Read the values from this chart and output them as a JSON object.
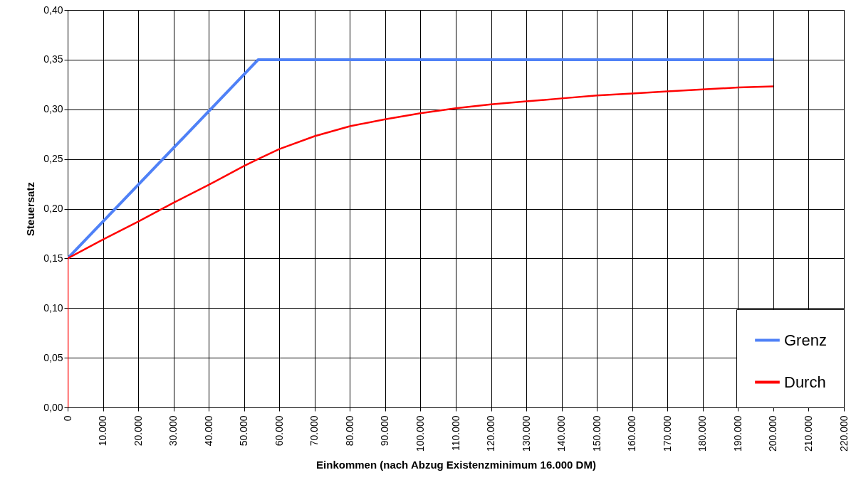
{
  "chart_data": {
    "type": "line",
    "xlabel": "Einkommen (nach Abzug Existenzminimum 16.000 DM)",
    "ylabel": "Steuersatz",
    "series": [
      {
        "name": "Grenz",
        "color": "#4f81f7",
        "x": [
          0,
          54000,
          200000
        ],
        "values": [
          0.15,
          0.35,
          0.35
        ]
      },
      {
        "name": "Durch",
        "color": "#ff0000",
        "x": [
          0,
          0,
          10000,
          20000,
          30000,
          40000,
          50000,
          54000,
          60000,
          70000,
          80000,
          90000,
          100000,
          110000,
          120000,
          130000,
          140000,
          150000,
          160000,
          170000,
          180000,
          190000,
          200000
        ],
        "values": [
          0,
          0.15,
          0.169,
          0.187,
          0.206,
          0.224,
          0.243,
          0.25,
          0.26,
          0.273,
          0.283,
          0.29,
          0.296,
          0.301,
          0.305,
          0.308,
          0.311,
          0.314,
          0.316,
          0.318,
          0.32,
          0.322,
          0.323
        ]
      }
    ],
    "xlim": [
      0,
      220000
    ],
    "xticks": [
      {
        "value": 0,
        "label": "0"
      },
      {
        "value": 10000,
        "label": "10.000"
      },
      {
        "value": 20000,
        "label": "20.000"
      },
      {
        "value": 30000,
        "label": "30.000"
      },
      {
        "value": 40000,
        "label": "40.000"
      },
      {
        "value": 50000,
        "label": "50.000"
      },
      {
        "value": 60000,
        "label": "60.000"
      },
      {
        "value": 70000,
        "label": "70.000"
      },
      {
        "value": 80000,
        "label": "80.000"
      },
      {
        "value": 90000,
        "label": "90.000"
      },
      {
        "value": 100000,
        "label": "100.000"
      },
      {
        "value": 110000,
        "label": "110.000"
      },
      {
        "value": 120000,
        "label": "120.000"
      },
      {
        "value": 130000,
        "label": "130.000"
      },
      {
        "value": 140000,
        "label": "140.000"
      },
      {
        "value": 150000,
        "label": "150.000"
      },
      {
        "value": 160000,
        "label": "160.000"
      },
      {
        "value": 170000,
        "label": "170.000"
      },
      {
        "value": 180000,
        "label": "180.000"
      },
      {
        "value": 190000,
        "label": "190.000"
      },
      {
        "value": 200000,
        "label": "200.000"
      },
      {
        "value": 210000,
        "label": "210.000"
      },
      {
        "value": 220000,
        "label": "220.000"
      }
    ],
    "ylim": [
      0,
      0.4
    ],
    "yticks": [
      {
        "value": 0,
        "label": "0,00"
      },
      {
        "value": 0.05,
        "label": "0,05"
      },
      {
        "value": 0.1,
        "label": "0,10"
      },
      {
        "value": 0.15,
        "label": "0,15"
      },
      {
        "value": 0.2,
        "label": "0,20"
      },
      {
        "value": 0.25,
        "label": "0,25"
      },
      {
        "value": 0.3,
        "label": "0,30"
      },
      {
        "value": 0.35,
        "label": "0,35"
      },
      {
        "value": 0.4,
        "label": "0,40"
      }
    ],
    "grid": true,
    "legend": "bottom right",
    "marker": "none",
    "line_style": "solid"
  }
}
